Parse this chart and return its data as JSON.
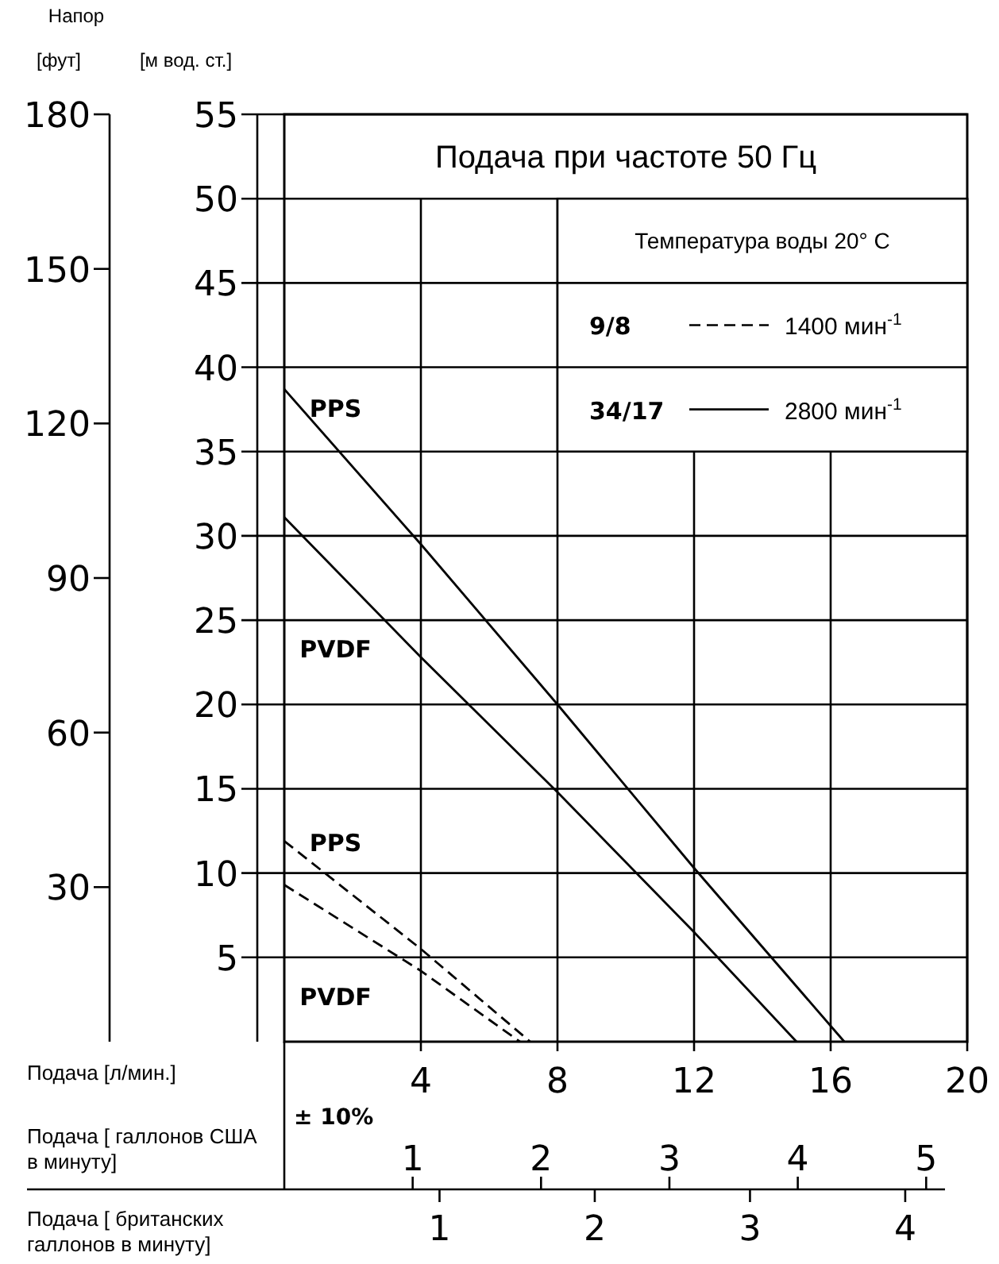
{
  "chart_data": {
    "type": "line",
    "title": "Подача при частоте 50 Гц",
    "xlabel": "Подача [л/мин.]",
    "x2label": "Подача [ галлонов США в минуту]",
    "ylabel": "[м вод. ст.]",
    "y2label": "[фут]",
    "xlim": [
      0,
      20
    ],
    "xticks": [
      4,
      8,
      12,
      16,
      20
    ],
    "x2lim": [
      0,
      5.32
    ],
    "x2ticks": [
      1,
      2,
      3,
      4,
      5
    ],
    "ylim": [
      0,
      55
    ],
    "yticks": [
      5,
      10,
      15,
      20,
      25,
      30,
      35,
      40,
      45,
      50,
      55
    ],
    "y2lim": [
      0,
      180
    ],
    "y2ticks": [
      30,
      60,
      90,
      120,
      150,
      180
    ],
    "grid": true,
    "marker": "none",
    "series": [
      {
        "name": "PPS",
        "color": "#000000",
        "line_style": "solid",
        "x": [
          0,
          4,
          8,
          12,
          16.4
        ],
        "values": [
          38.7,
          29.5,
          20,
          10.3,
          0
        ]
      },
      {
        "name": "PVDF",
        "color": "#000000",
        "line_style": "solid",
        "x": [
          0,
          4,
          8,
          12,
          15
        ],
        "values": [
          31.1,
          22.8,
          14.8,
          6.5,
          0
        ]
      },
      {
        "name": "PPS",
        "color": "#000000",
        "line_style": "dashed",
        "x": [
          0,
          4,
          7.2
        ],
        "values": [
          11.9,
          5.5,
          0
        ]
      },
      {
        "name": "PVDF",
        "color": "#000000",
        "line_style": "dashed",
        "x": [
          0,
          4,
          6.9
        ],
        "values": [
          9.3,
          4.2,
          0
        ]
      }
    ],
    "annotations": [
      "Напор",
      "Температура воды 20° C",
      "9/8",
      "1400 мин$^{-1}$",
      "34/17",
      "2800 мин$^{-1}$",
      "± 10%",
      "Подача [ британских галлонов в минуту]",
      "1",
      "2",
      "3",
      "4"
    ]
  }
}
